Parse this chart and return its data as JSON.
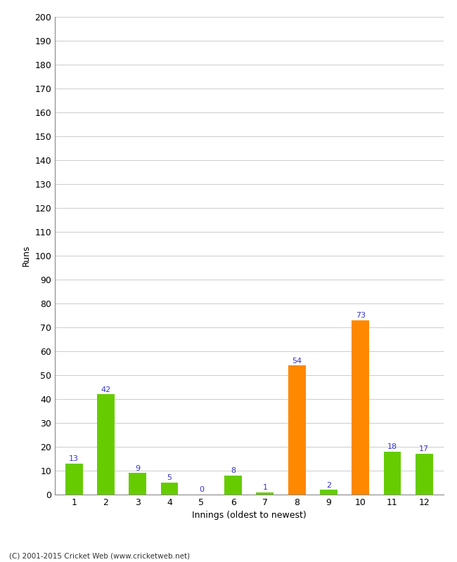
{
  "categories": [
    "1",
    "2",
    "3",
    "4",
    "5",
    "6",
    "7",
    "8",
    "9",
    "10",
    "11",
    "12"
  ],
  "values": [
    13,
    42,
    9,
    5,
    0,
    8,
    1,
    54,
    2,
    73,
    18,
    17
  ],
  "colors": [
    "#66cc00",
    "#66cc00",
    "#66cc00",
    "#66cc00",
    "#66cc00",
    "#66cc00",
    "#66cc00",
    "#ff8800",
    "#66cc00",
    "#ff8800",
    "#66cc00",
    "#66cc00"
  ],
  "xlabel": "Innings (oldest to newest)",
  "ylabel": "Runs",
  "ylim": [
    0,
    200
  ],
  "ytick_step": 10,
  "background_color": "#ffffff",
  "grid_color": "#cccccc",
  "label_color": "#3333cc",
  "footer": "(C) 2001-2015 Cricket Web (www.cricketweb.net)",
  "bar_width": 0.55
}
